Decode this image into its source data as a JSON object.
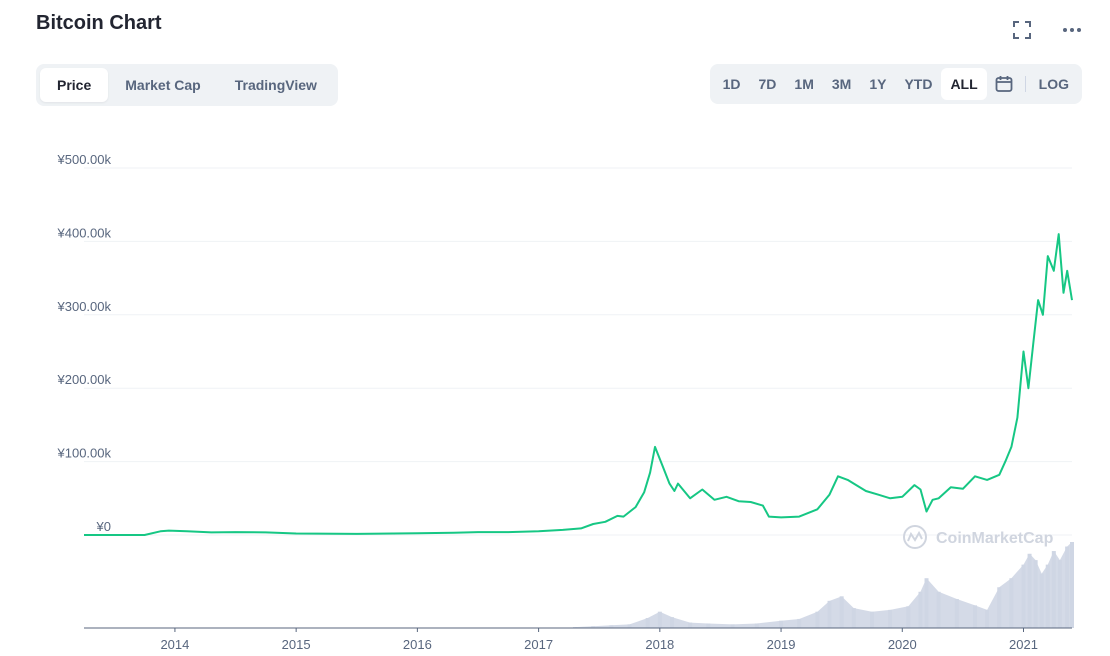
{
  "header": {
    "title": "Bitcoin Chart"
  },
  "tabs": [
    "Price",
    "Market Cap",
    "TradingView"
  ],
  "active_tab": "Price",
  "ranges": [
    "1D",
    "7D",
    "1M",
    "3M",
    "1Y",
    "YTD",
    "ALL"
  ],
  "active_range": "ALL",
  "log_label": "LOG",
  "icons": {
    "fullscreen": "fullscreen-icon",
    "more": "more-icon",
    "calendar": "calendar-icon"
  },
  "watermark": "CoinMarketCap",
  "colors": {
    "line": "#16c784",
    "volume": "#cfd6e4",
    "grid": "#eff2f5",
    "axis_text": "#58667e"
  },
  "chart_data": {
    "type": "line",
    "title": "Bitcoin Chart",
    "series": [
      {
        "values": [
          [
            2013.25,
            0
          ],
          [
            2013.5,
            0
          ],
          [
            2013.75,
            0
          ],
          [
            2013.88,
            5000
          ],
          [
            2013.95,
            6000
          ],
          [
            2014.1,
            5000
          ],
          [
            2014.3,
            3500
          ],
          [
            2014.5,
            4000
          ],
          [
            2014.75,
            3500
          ],
          [
            2015.0,
            2000
          ],
          [
            2015.5,
            1500
          ],
          [
            2015.8,
            2000
          ],
          [
            2016.0,
            2500
          ],
          [
            2016.3,
            3000
          ],
          [
            2016.5,
            4000
          ],
          [
            2016.75,
            4000
          ],
          [
            2017.0,
            5000
          ],
          [
            2017.2,
            7000
          ],
          [
            2017.35,
            9000
          ],
          [
            2017.45,
            15000
          ],
          [
            2017.55,
            18000
          ],
          [
            2017.65,
            26000
          ],
          [
            2017.7,
            25000
          ],
          [
            2017.8,
            38000
          ],
          [
            2017.87,
            58000
          ],
          [
            2017.92,
            85000
          ],
          [
            2017.96,
            120000
          ],
          [
            2018.02,
            95000
          ],
          [
            2018.08,
            70000
          ],
          [
            2018.12,
            60000
          ],
          [
            2018.15,
            70000
          ],
          [
            2018.25,
            50000
          ],
          [
            2018.35,
            62000
          ],
          [
            2018.45,
            48000
          ],
          [
            2018.55,
            52000
          ],
          [
            2018.65,
            46000
          ],
          [
            2018.75,
            45000
          ],
          [
            2018.85,
            40000
          ],
          [
            2018.9,
            25000
          ],
          [
            2019.0,
            24000
          ],
          [
            2019.15,
            25000
          ],
          [
            2019.3,
            35000
          ],
          [
            2019.4,
            55000
          ],
          [
            2019.47,
            80000
          ],
          [
            2019.55,
            75000
          ],
          [
            2019.6,
            70000
          ],
          [
            2019.7,
            60000
          ],
          [
            2019.8,
            55000
          ],
          [
            2019.9,
            50000
          ],
          [
            2020.0,
            52000
          ],
          [
            2020.1,
            68000
          ],
          [
            2020.15,
            62000
          ],
          [
            2020.2,
            32000
          ],
          [
            2020.25,
            48000
          ],
          [
            2020.3,
            50000
          ],
          [
            2020.4,
            65000
          ],
          [
            2020.5,
            63000
          ],
          [
            2020.6,
            80000
          ],
          [
            2020.7,
            75000
          ],
          [
            2020.8,
            82000
          ],
          [
            2020.85,
            100000
          ],
          [
            2020.9,
            120000
          ],
          [
            2020.95,
            160000
          ],
          [
            2021.0,
            250000
          ],
          [
            2021.04,
            200000
          ],
          [
            2021.08,
            260000
          ],
          [
            2021.12,
            320000
          ],
          [
            2021.16,
            300000
          ],
          [
            2021.2,
            380000
          ],
          [
            2021.25,
            360000
          ],
          [
            2021.29,
            410000
          ],
          [
            2021.33,
            330000
          ],
          [
            2021.36,
            360000
          ],
          [
            2021.4,
            320000
          ]
        ]
      }
    ],
    "volume": [
      [
        2017.3,
        1
      ],
      [
        2017.45,
        2
      ],
      [
        2017.6,
        3
      ],
      [
        2017.75,
        4
      ],
      [
        2017.9,
        11
      ],
      [
        2018.0,
        18
      ],
      [
        2018.1,
        12
      ],
      [
        2018.25,
        6
      ],
      [
        2018.4,
        5
      ],
      [
        2018.6,
        4
      ],
      [
        2018.8,
        5
      ],
      [
        2019.0,
        8
      ],
      [
        2019.15,
        10
      ],
      [
        2019.3,
        18
      ],
      [
        2019.4,
        30
      ],
      [
        2019.5,
        35
      ],
      [
        2019.6,
        22
      ],
      [
        2019.75,
        18
      ],
      [
        2019.9,
        20
      ],
      [
        2020.05,
        24
      ],
      [
        2020.15,
        40
      ],
      [
        2020.2,
        55
      ],
      [
        2020.3,
        40
      ],
      [
        2020.45,
        32
      ],
      [
        2020.6,
        25
      ],
      [
        2020.7,
        20
      ],
      [
        2020.8,
        45
      ],
      [
        2020.9,
        55
      ],
      [
        2021.0,
        70
      ],
      [
        2021.05,
        82
      ],
      [
        2021.1,
        75
      ],
      [
        2021.15,
        60
      ],
      [
        2021.2,
        70
      ],
      [
        2021.25,
        85
      ],
      [
        2021.3,
        75
      ],
      [
        2021.36,
        90
      ],
      [
        2021.4,
        95
      ]
    ],
    "xlim": [
      2013.25,
      2021.4
    ],
    "ylim": [
      0,
      500000
    ],
    "y_ticks": [
      {
        "value": 500000,
        "label": "¥500.00k"
      },
      {
        "value": 400000,
        "label": "¥400.00k"
      },
      {
        "value": 300000,
        "label": "¥300.00k"
      },
      {
        "value": 200000,
        "label": "¥200.00k"
      },
      {
        "value": 100000,
        "label": "¥100.00k"
      },
      {
        "value": 0,
        "label": "¥0"
      }
    ],
    "x_ticks": [
      {
        "value": 2014,
        "label": "2014"
      },
      {
        "value": 2015,
        "label": "2015"
      },
      {
        "value": 2016,
        "label": "2016"
      },
      {
        "value": 2017,
        "label": "2017"
      },
      {
        "value": 2018,
        "label": "2018"
      },
      {
        "value": 2019,
        "label": "2019"
      },
      {
        "value": 2020,
        "label": "2020"
      },
      {
        "value": 2021,
        "label": "2021"
      }
    ],
    "grid": true
  }
}
